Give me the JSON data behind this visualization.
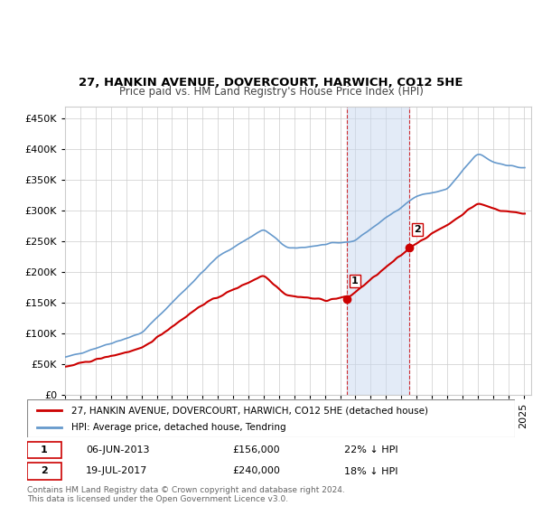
{
  "title": "27, HANKIN AVENUE, DOVERCOURT, HARWICH, CO12 5HE",
  "subtitle": "Price paid vs. HM Land Registry's House Price Index (HPI)",
  "legend_line1": "27, HANKIN AVENUE, DOVERCOURT, HARWICH, CO12 5HE (detached house)",
  "legend_line2": "HPI: Average price, detached house, Tendring",
  "transaction1_label": "1",
  "transaction1_date": "06-JUN-2013",
  "transaction1_price": "£156,000",
  "transaction1_hpi": "22% ↓ HPI",
  "transaction2_label": "2",
  "transaction2_date": "19-JUL-2017",
  "transaction2_price": "£240,000",
  "transaction2_hpi": "18% ↓ HPI",
  "footer": "Contains HM Land Registry data © Crown copyright and database right 2024.\nThis data is licensed under the Open Government Licence v3.0.",
  "hpi_color": "#6699cc",
  "sold_color": "#cc0000",
  "marker1_x": 2013.43,
  "marker1_y": 156000,
  "marker2_x": 2017.54,
  "marker2_y": 240000,
  "shade_x1": 2013.43,
  "shade_x2": 2017.54,
  "ylim": [
    0,
    470000
  ],
  "xlim_start": 1995,
  "xlim_end": 2025.5
}
